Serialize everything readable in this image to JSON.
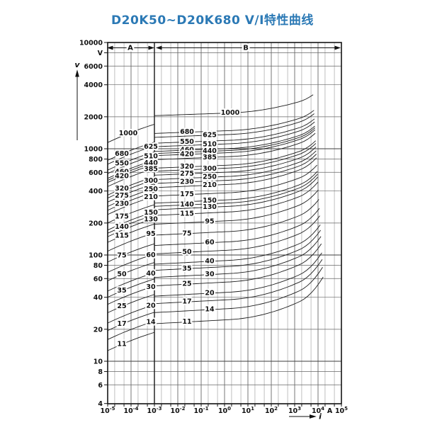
{
  "title": "D20K50~D20K680   V/I特性曲线",
  "colors": {
    "title": "#2b79b5",
    "curve": "#1c1c1c",
    "background": "#ffffff"
  },
  "axes": {
    "y_unit": "V",
    "y_arrow_label": "v",
    "x_unit": "A",
    "x_arrow_label": "i",
    "y_ticks": [
      {
        "value": 10000,
        "label": "10000"
      },
      {
        "value": 8000,
        "label": "V"
      },
      {
        "value": 6000,
        "label": "6000"
      },
      {
        "value": 4000,
        "label": "4000"
      },
      {
        "value": 2000,
        "label": "2000"
      },
      {
        "value": 1000,
        "label": "1000"
      },
      {
        "value": 800,
        "label": "800"
      },
      {
        "value": 600,
        "label": "600"
      },
      {
        "value": 400,
        "label": "400"
      },
      {
        "value": 200,
        "label": "200"
      },
      {
        "value": 100,
        "label": "100"
      },
      {
        "value": 80,
        "label": "80"
      },
      {
        "value": 60,
        "label": "60"
      },
      {
        "value": 40,
        "label": "40"
      },
      {
        "value": 20,
        "label": "20"
      },
      {
        "value": 10,
        "label": "10"
      },
      {
        "value": 8,
        "label": "8"
      },
      {
        "value": 6,
        "label": "6"
      },
      {
        "value": 4,
        "label": "4"
      }
    ],
    "x_ticks": [
      {
        "base": "10",
        "exp": "-5"
      },
      {
        "base": "10",
        "exp": "-4"
      },
      {
        "base": "10",
        "exp": "-3"
      },
      {
        "base": "10",
        "exp": "-2"
      },
      {
        "base": "10",
        "exp": "-1"
      },
      {
        "base": "10",
        "exp": "0"
      },
      {
        "base": "10",
        "exp": "1"
      },
      {
        "base": "10",
        "exp": "2"
      },
      {
        "base": "10",
        "exp": "3"
      },
      {
        "base": "10",
        "exp": "4"
      },
      {
        "base": "10",
        "exp": "5"
      }
    ]
  },
  "regions": {
    "a_label": "A",
    "b_label": "B"
  },
  "chart_data": {
    "type": "line",
    "title": "D20K50~D20K680 V/I特性曲线",
    "x_axis": {
      "quantity": "i",
      "unit": "A",
      "scale": "log",
      "range": [
        1e-05,
        100000.0
      ]
    },
    "y_axis": {
      "quantity": "v",
      "unit": "V",
      "scale": "log",
      "range": [
        4,
        10000
      ]
    },
    "grid": {
      "x_minor_mantissas": [
        2,
        5
      ],
      "y_mantissas": [
        1,
        2,
        4,
        6,
        8
      ]
    },
    "regions": [
      {
        "label": "A",
        "i_range": [
          1e-05,
          0.001
        ]
      },
      {
        "label": "B",
        "i_range": [
          0.001,
          100000.0
        ]
      }
    ],
    "series": [
      {
        "label": "1000",
        "v": 1000,
        "col": 0
      },
      {
        "label": "680",
        "v": 680,
        "col": 1
      },
      {
        "label": "625",
        "v": 625,
        "col": 2
      },
      {
        "label": "550",
        "v": 550,
        "col": 1
      },
      {
        "label": "510",
        "v": 510,
        "col": 2
      },
      {
        "label": "460",
        "v": 460,
        "col": 1
      },
      {
        "label": "440",
        "v": 440,
        "col": 2
      },
      {
        "label": "420",
        "v": 420,
        "col": 1
      },
      {
        "label": "385",
        "v": 385,
        "col": 2
      },
      {
        "label": "320",
        "v": 320,
        "col": 1
      },
      {
        "label": "300",
        "v": 300,
        "col": 2
      },
      {
        "label": "275",
        "v": 275,
        "col": 1
      },
      {
        "label": "250",
        "v": 250,
        "col": 2
      },
      {
        "label": "230",
        "v": 230,
        "col": 1
      },
      {
        "label": "210",
        "v": 210,
        "col": 2
      },
      {
        "label": "175",
        "v": 175,
        "col": 1
      },
      {
        "label": "150",
        "v": 150,
        "col": 2
      },
      {
        "label": "140",
        "v": 140,
        "col": 1
      },
      {
        "label": "130",
        "v": 130,
        "col": 2
      },
      {
        "label": "115",
        "v": 115,
        "col": 1
      },
      {
        "label": "95",
        "v": 95,
        "col": 2
      },
      {
        "label": "75",
        "v": 75,
        "col": 1
      },
      {
        "label": "60",
        "v": 60,
        "col": 2
      },
      {
        "label": "50",
        "v": 50,
        "col": 1
      },
      {
        "label": "40",
        "v": 40,
        "col": 2
      },
      {
        "label": "35",
        "v": 35,
        "col": 1
      },
      {
        "label": "30",
        "v": 30,
        "col": 2
      },
      {
        "label": "25",
        "v": 25,
        "col": 1
      },
      {
        "label": "20",
        "v": 20,
        "col": 2
      },
      {
        "label": "17",
        "v": 17,
        "col": 1
      },
      {
        "label": "14",
        "v": 14,
        "col": 2
      },
      {
        "label": "11",
        "v": 11,
        "col": 1
      }
    ],
    "curve_model": {
      "a_segment": {
        "i_range": [
          1e-05,
          0.001
        ],
        "v_end_factor": 1.7,
        "slope_per_decade": 0.068,
        "curvature": -0.009
      },
      "b_segment": {
        "i_start": 0.001,
        "v_start_factor": 2.05,
        "end_v_coef": 7.6,
        "end_v_exp": 0.876,
        "end_u_base": 4.45,
        "end_u_slope": -0.22,
        "shape": [
          0.013,
          0.016,
          0.2,
          0.12,
          3.2
        ]
      }
    }
  }
}
